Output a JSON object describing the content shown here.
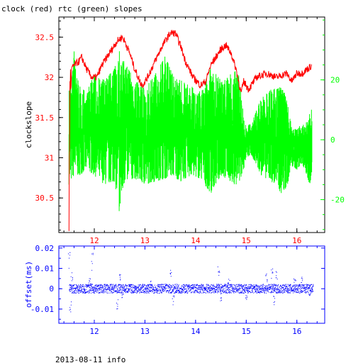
{
  "title": "clock (red) rtc (green) slopes",
  "footer": "2013-08-11 info",
  "colors": {
    "clock": "#ff0000",
    "rtc": "#00ff00",
    "offset": "#0000ff",
    "frame": "#000000"
  },
  "chart_data": [
    {
      "type": "line",
      "ylabel": "clockslope",
      "xlim": [
        11.3,
        16.55
      ],
      "ylim": [
        30.07,
        32.75
      ],
      "x_ticks": [
        "12",
        "13",
        "14",
        "15",
        "16"
      ],
      "y_ticks": [
        "30.5",
        "31",
        "31.5",
        "32",
        "32.5"
      ],
      "y2lim": [
        -31,
        41
      ],
      "y2_ticks": [
        "-20",
        "0",
        "20"
      ],
      "series": [
        {
          "color": "red",
          "axis": "left",
          "x": [
            11.5,
            11.52,
            11.55,
            11.6,
            11.7,
            11.75,
            11.85,
            11.95,
            12.05,
            12.15,
            12.3,
            12.45,
            12.55,
            12.6,
            12.7,
            12.8,
            12.9,
            12.95,
            13.05,
            13.2,
            13.35,
            13.5,
            13.6,
            13.7,
            13.8,
            13.95,
            14.1,
            14.2,
            14.3,
            14.5,
            14.6,
            14.7,
            14.8,
            14.9,
            14.95,
            15.05,
            15.2,
            15.4,
            15.6,
            15.8,
            15.9,
            16.0,
            16.1,
            16.2,
            16.3
          ],
          "y": [
            30.25,
            32.0,
            32.1,
            32.15,
            32.2,
            32.25,
            32.1,
            32.0,
            32.0,
            32.15,
            32.3,
            32.45,
            32.5,
            32.45,
            32.3,
            32.1,
            31.95,
            31.9,
            32.0,
            32.2,
            32.4,
            32.55,
            32.55,
            32.4,
            32.2,
            32.0,
            31.9,
            31.95,
            32.15,
            32.35,
            32.4,
            32.3,
            32.1,
            31.8,
            31.95,
            31.85,
            32.0,
            32.05,
            32.0,
            32.05,
            31.95,
            32.05,
            32.05,
            32.1,
            32.15
          ]
        },
        {
          "color": "green",
          "axis": "right",
          "x": [
            11.5,
            11.6,
            11.7,
            11.85,
            12.0,
            12.2,
            12.4,
            12.5,
            12.6,
            12.8,
            13.0,
            13.2,
            13.4,
            13.55,
            13.7,
            13.9,
            14.1,
            14.3,
            14.5,
            14.7,
            14.85,
            14.95,
            15.0,
            15.1,
            15.3,
            15.5,
            15.7,
            15.8,
            15.9,
            16.0,
            16.1,
            16.2,
            16.25,
            16.3
          ],
          "y_low": [
            -15,
            -12,
            -12,
            -10,
            -12,
            -15,
            -14,
            -25,
            -14,
            -13,
            -15,
            -14,
            -13,
            -12,
            -14,
            -12,
            -13,
            -18,
            -12,
            -14,
            -16,
            -10,
            -6,
            -5,
            -12,
            -14,
            -18,
            -16,
            -9,
            -10,
            -8,
            -12,
            -15,
            -12
          ],
          "y_high": [
            18,
            30,
            18,
            16,
            22,
            20,
            24,
            30,
            26,
            20,
            17,
            22,
            28,
            22,
            20,
            18,
            16,
            24,
            20,
            22,
            24,
            8,
            4,
            6,
            14,
            17,
            18,
            14,
            4,
            4,
            5,
            6,
            10,
            12
          ]
        }
      ]
    },
    {
      "type": "scatter",
      "ylabel": "offset(ms)",
      "xlim": [
        11.3,
        16.55
      ],
      "ylim": [
        -0.017,
        0.021
      ],
      "x_ticks": [
        "12",
        "13",
        "14",
        "15",
        "16"
      ],
      "y_ticks": [
        "-0.01",
        "0",
        "0.01",
        "0.02"
      ],
      "series": [
        {
          "color": "blue",
          "band": [
            -0.0022,
            0.0022
          ],
          "outliers_x": [
            11.5,
            11.52,
            11.55,
            11.9,
            11.95,
            12.45,
            12.5,
            12.55,
            13.1,
            13.5,
            13.55,
            14.45,
            14.5,
            14.65,
            15.0,
            15.4,
            15.5,
            15.55,
            15.6,
            15.95,
            16.1,
            16.25
          ],
          "outliers_y": [
            0.019,
            -0.014,
            0.008,
            0.006,
            0.019,
            -0.011,
            0.007,
            -0.005,
            0.004,
            0.01,
            -0.008,
            0.011,
            -0.006,
            0.005,
            -0.006,
            0.008,
            0.011,
            -0.008,
            0.009,
            0.005,
            0.006,
            -0.004
          ]
        }
      ]
    }
  ]
}
